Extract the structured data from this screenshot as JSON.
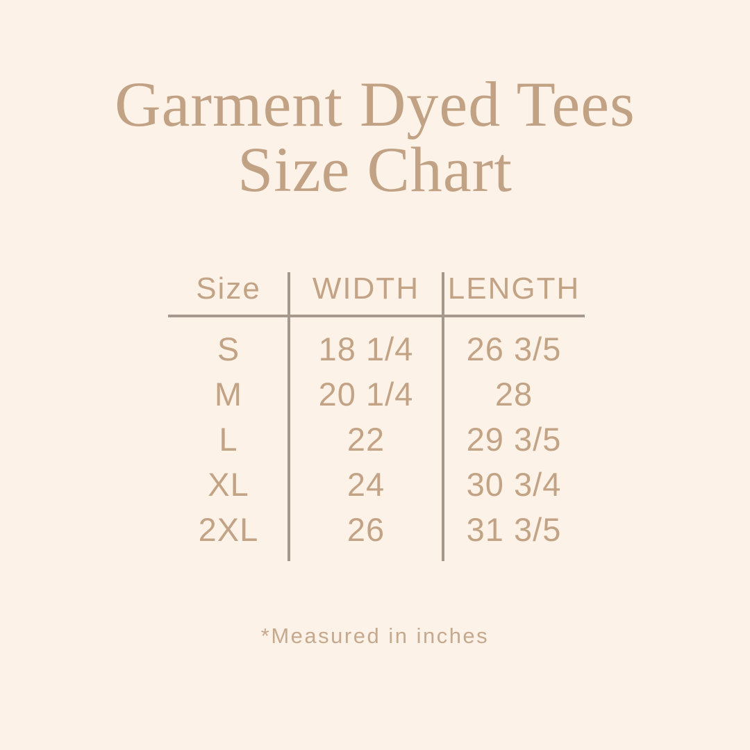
{
  "page": {
    "background_color": "#fdf2e7",
    "title_color": "#c2a285",
    "table_text_color": "#c3a385",
    "line_color": "#a6988a"
  },
  "title": {
    "line1": "Garment Dyed Tees",
    "line2": "Size Chart"
  },
  "table": {
    "headers": [
      "Size",
      "WIDTH",
      "LENGTH"
    ],
    "rows": [
      {
        "size": "S",
        "width": "18 1/4",
        "length": "26 3/5"
      },
      {
        "size": "M",
        "width": "20 1/4",
        "length": "28"
      },
      {
        "size": "L",
        "width": "22",
        "length": "29 3/5"
      },
      {
        "size": "XL",
        "width": "24",
        "length": "30 3/4"
      },
      {
        "size": "2XL",
        "width": "26",
        "length": "31 3/5"
      }
    ]
  },
  "footer": {
    "note": "*Measured in inches"
  },
  "chart_data": {
    "type": "table",
    "title": "Garment Dyed Tees Size Chart",
    "columns": [
      "Size",
      "WIDTH",
      "LENGTH"
    ],
    "rows": [
      [
        "S",
        "18 1/4",
        "26 3/5"
      ],
      [
        "M",
        "20 1/4",
        "28"
      ],
      [
        "L",
        "22",
        "29 3/5"
      ],
      [
        "XL",
        "24",
        "30 3/4"
      ],
      [
        "2XL",
        "26",
        "31 3/5"
      ]
    ],
    "units": "inches",
    "note": "*Measured in inches"
  }
}
